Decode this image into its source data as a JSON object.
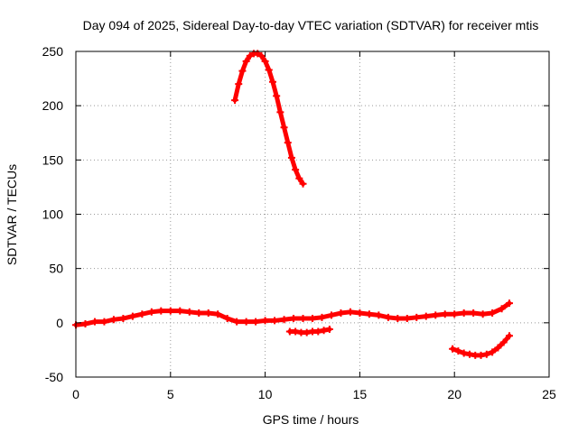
{
  "chart_data": {
    "type": "scatter",
    "title": "Day 094 of 2025, Sidereal Day-to-day VTEC variation (SDTVAR) for receiver mtis",
    "xlabel": "GPS time / hours",
    "ylabel": "SDTVAR / TECUs",
    "xlim": [
      0,
      25
    ],
    "ylim": [
      -50,
      250
    ],
    "xticks": [
      0,
      5,
      10,
      15,
      20,
      25
    ],
    "xtick_labels": [
      "0",
      "5",
      "10",
      "15",
      "20",
      "25"
    ],
    "yticks": [
      -50,
      0,
      50,
      100,
      150,
      200,
      250
    ],
    "ytick_labels": [
      "-50",
      "0",
      "50",
      "100",
      "150",
      "200",
      "250"
    ],
    "grid": true,
    "marker": "plus",
    "color": "#ff0000",
    "series": [
      {
        "name": "main",
        "x": [
          0.0,
          0.5,
          1.0,
          1.5,
          2.0,
          2.5,
          3.0,
          3.5,
          4.0,
          4.5,
          5.0,
          5.5,
          6.0,
          6.5,
          7.0,
          7.5,
          8.0,
          8.5,
          9.0,
          9.5,
          10.0,
          10.5,
          11.0,
          11.5,
          12.0,
          12.5,
          13.0,
          13.5,
          14.0,
          14.5,
          15.0,
          15.5,
          16.0,
          16.5,
          17.0,
          17.5,
          18.0,
          18.5,
          19.0,
          19.5,
          20.0,
          20.5,
          21.0,
          21.5,
          22.0,
          22.5,
          22.9
        ],
        "y": [
          -2,
          -1,
          1,
          1,
          3,
          4,
          6,
          8,
          10,
          11,
          11,
          11,
          10,
          9,
          9,
          8,
          4,
          1,
          1,
          1,
          2,
          2,
          3,
          4,
          4,
          4,
          5,
          7,
          9,
          10,
          9,
          8,
          7,
          5,
          4,
          4,
          5,
          6,
          7,
          8,
          8,
          9,
          9,
          8,
          9,
          13,
          18
        ]
      },
      {
        "name": "spike",
        "x": [
          8.4,
          8.6,
          8.8,
          9.0,
          9.2,
          9.4,
          9.6,
          9.8,
          10.0,
          10.2,
          10.4,
          10.6,
          10.8,
          11.0,
          11.2,
          11.4,
          11.6,
          11.8,
          12.0
        ],
        "y": [
          205,
          220,
          232,
          241,
          246,
          248,
          248,
          246,
          241,
          233,
          222,
          209,
          194,
          180,
          166,
          152,
          141,
          133,
          128
        ]
      },
      {
        "name": "segment-a",
        "x": [
          11.3,
          11.6,
          11.9,
          12.2,
          12.5,
          12.8,
          13.1,
          13.4
        ],
        "y": [
          -8,
          -8,
          -9,
          -9,
          -8,
          -8,
          -7,
          -6
        ]
      },
      {
        "name": "segment-b",
        "x": [
          19.9,
          20.2,
          20.5,
          20.8,
          21.1,
          21.4,
          21.7,
          22.0,
          22.3,
          22.6,
          22.9
        ],
        "y": [
          -24,
          -26,
          -28,
          -29,
          -30,
          -30,
          -29,
          -27,
          -23,
          -18,
          -12
        ]
      }
    ]
  }
}
